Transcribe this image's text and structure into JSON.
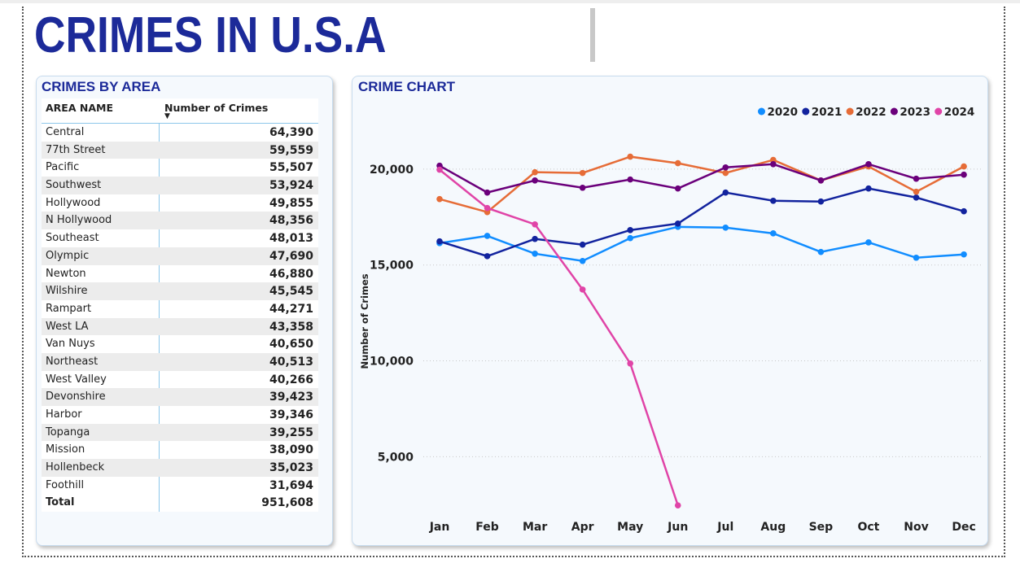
{
  "header": {
    "title": "CRIMES IN U.S.A"
  },
  "table": {
    "title": "CRIMES BY AREA",
    "columns": [
      "AREA NAME",
      "Number of Crimes"
    ],
    "rows": [
      [
        "Central",
        "64,390"
      ],
      [
        "77th Street",
        "59,559"
      ],
      [
        "Pacific",
        "55,507"
      ],
      [
        "Southwest",
        "53,924"
      ],
      [
        "Hollywood",
        "49,855"
      ],
      [
        "N Hollywood",
        "48,356"
      ],
      [
        "Southeast",
        "48,013"
      ],
      [
        "Olympic",
        "47,690"
      ],
      [
        "Newton",
        "46,880"
      ],
      [
        "Wilshire",
        "45,545"
      ],
      [
        "Rampart",
        "44,271"
      ],
      [
        "West LA",
        "43,358"
      ],
      [
        "Van Nuys",
        "40,650"
      ],
      [
        "Northeast",
        "40,513"
      ],
      [
        "West Valley",
        "40,266"
      ],
      [
        "Devonshire",
        "39,423"
      ],
      [
        "Harbor",
        "39,346"
      ],
      [
        "Topanga",
        "39,255"
      ],
      [
        "Mission",
        "38,090"
      ],
      [
        "Hollenbeck",
        "35,023"
      ],
      [
        "Foothill",
        "31,694"
      ]
    ],
    "total": [
      "Total",
      "951,608"
    ]
  },
  "chart_data": {
    "type": "line",
    "title": "CRIME CHART",
    "y_label": "Number of Crimes",
    "categories": [
      "Jan",
      "Feb",
      "Mar",
      "Apr",
      "May",
      "Jun",
      "Jul",
      "Aug",
      "Sep",
      "Oct",
      "Nov",
      "Dec"
    ],
    "series": [
      {
        "name": "2020",
        "color": "#118dff",
        "values": [
          16140,
          16520,
          15590,
          15210,
          16400,
          16990,
          16950,
          16650,
          15680,
          16180,
          15380,
          15550
        ]
      },
      {
        "name": "2021",
        "color": "#12239e",
        "values": [
          16230,
          15460,
          16360,
          16060,
          16820,
          17160,
          18780,
          18350,
          18310,
          18990,
          18520,
          17800
        ]
      },
      {
        "name": "2022",
        "color": "#e66c37",
        "values": [
          18440,
          17760,
          19840,
          19800,
          20650,
          20310,
          19800,
          20480,
          19410,
          20140,
          18820,
          20140
        ]
      },
      {
        "name": "2023",
        "color": "#6b007b",
        "values": [
          20180,
          18780,
          19410,
          19030,
          19460,
          18990,
          20090,
          20260,
          19410,
          20260,
          19500,
          19710
        ]
      },
      {
        "name": "2024",
        "color": "#e044a7",
        "values": [
          19970,
          17970,
          17120,
          13720,
          9860,
          2460,
          null,
          null,
          null,
          null,
          null,
          null
        ]
      }
    ],
    "ylim": [
      2000,
      22500
    ],
    "yticks": [
      {
        "value": 5000,
        "label": "5,000"
      },
      {
        "value": 10000,
        "label": "10,000"
      },
      {
        "value": 15000,
        "label": "15,000"
      },
      {
        "value": 20000,
        "label": "20,000"
      }
    ],
    "grid": true,
    "legend": "top-right"
  }
}
